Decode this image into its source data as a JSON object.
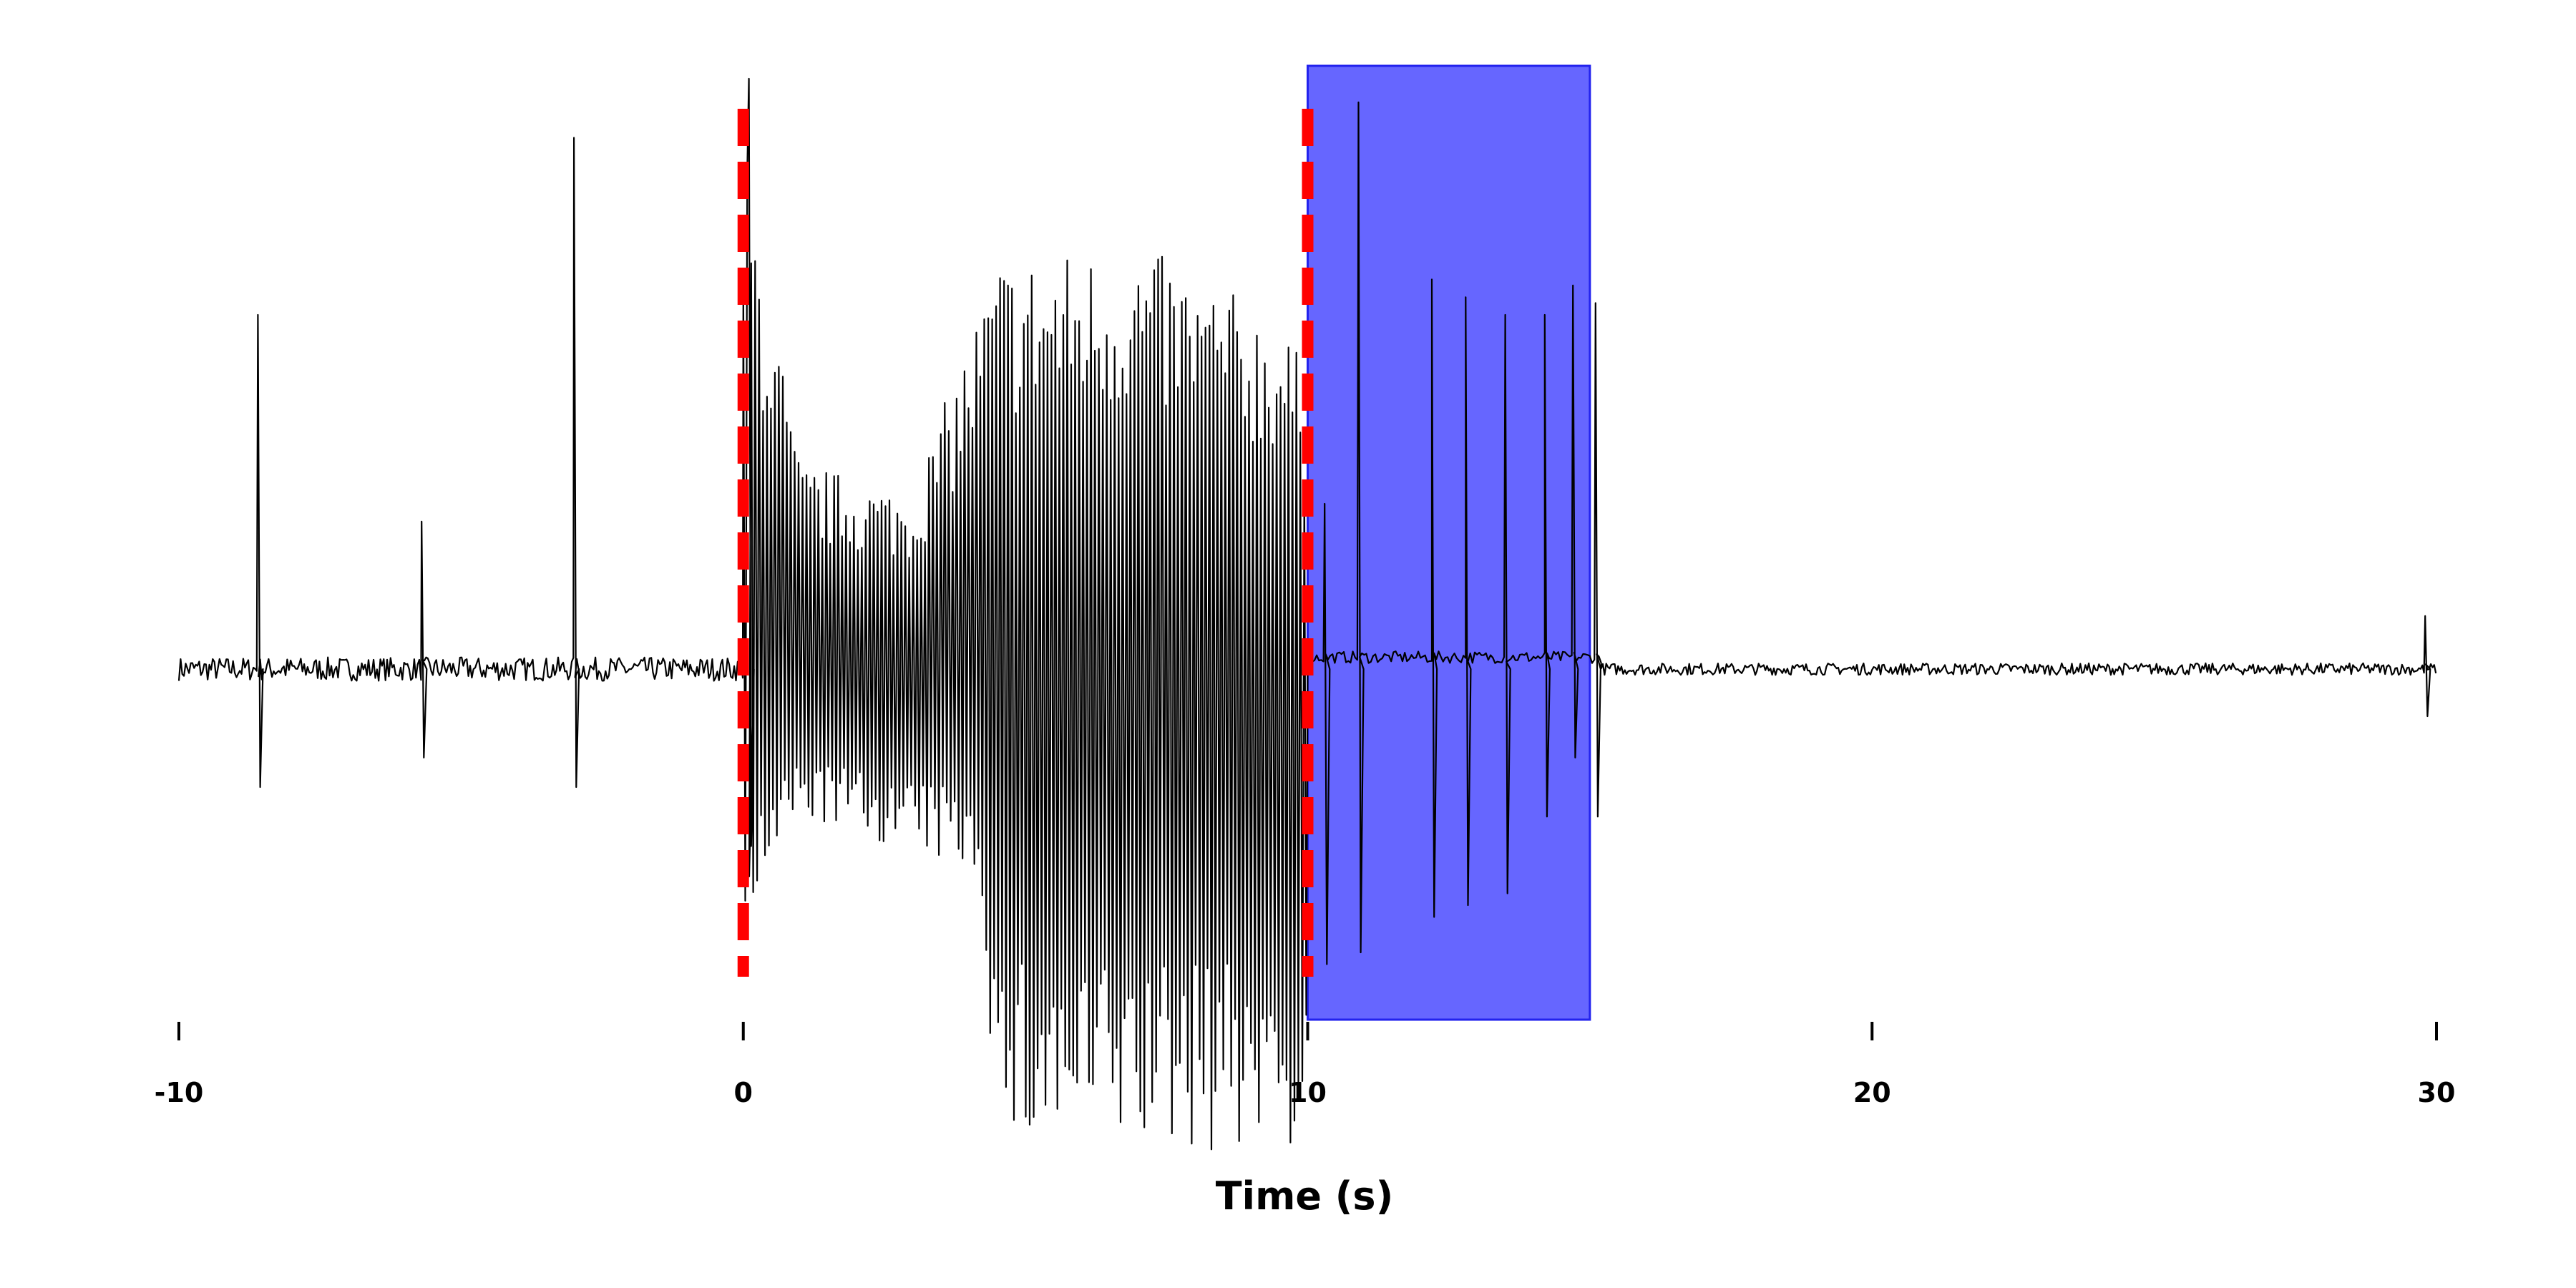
{
  "chart_data": {
    "type": "line",
    "title": "",
    "xlabel": "Time (s)",
    "ylabel": "",
    "xlim": [
      -10,
      30
    ],
    "xticks": [
      -10,
      0,
      10,
      20,
      30
    ],
    "xtick_labels": [
      "-10",
      "0",
      "10",
      "20",
      "30"
    ],
    "y_axis_shown": false,
    "grid": false,
    "legend": null,
    "series": [
      {
        "color": "#000000",
        "segments": [
          {
            "t_start": -10.0,
            "t_end": 0.0,
            "pattern": "baseline",
            "noise": 0.02
          },
          {
            "t_start": 0.0,
            "t_end": 10.0,
            "pattern": "dense oscillation",
            "upper_envelope": [
              [
                0.0,
                0.9
              ],
              [
                1.0,
                0.35
              ],
              [
                3.0,
                0.3
              ],
              [
                4.5,
                0.7
              ],
              [
                7.0,
                0.72
              ],
              [
                9.5,
                0.6
              ],
              [
                10.0,
                0.5
              ]
            ],
            "lower_envelope": [
              [
                0.0,
                -0.45
              ],
              [
                1.0,
                -0.25
              ],
              [
                4.2,
                -0.35
              ],
              [
                4.5,
                -0.82
              ],
              [
                9.0,
                -0.82
              ],
              [
                10.0,
                -0.82
              ]
            ]
          },
          {
            "t_start": 10.0,
            "t_end": 15.2,
            "pattern": "sparse spikes",
            "level": 0.02
          },
          {
            "t_start": 15.2,
            "t_end": 30.0,
            "pattern": "baseline",
            "noise": 0.01
          }
        ],
        "spikes": [
          {
            "t": -8.6,
            "min": -0.2,
            "max": 0.6
          },
          {
            "t": -5.7,
            "min": -0.15,
            "max": 0.25
          },
          {
            "t": -3.0,
            "min": -0.2,
            "max": 0.9
          },
          {
            "t": 0.1,
            "min": -0.3,
            "max": 1.0
          },
          {
            "t": 10.3,
            "min": -0.5,
            "max": 0.28
          },
          {
            "t": 10.9,
            "min": -0.48,
            "max": 0.96
          },
          {
            "t": 12.2,
            "min": -0.42,
            "max": 0.66
          },
          {
            "t": 12.8,
            "min": -0.4,
            "max": 0.63
          },
          {
            "t": 13.5,
            "min": -0.38,
            "max": 0.6
          },
          {
            "t": 14.2,
            "min": -0.25,
            "max": 0.6
          },
          {
            "t": 14.7,
            "min": -0.15,
            "max": 0.65
          },
          {
            "t": 15.1,
            "min": -0.25,
            "max": 0.62
          },
          {
            "t": 29.8,
            "min": -0.08,
            "max": 0.09
          }
        ]
      }
    ],
    "vlines": [
      {
        "x": 0,
        "color": "#ff0000",
        "style": "dashed"
      },
      {
        "x": 10,
        "color": "#ff0000",
        "style": "dashed"
      }
    ],
    "shaded_region": {
      "x_start": 10,
      "x_end": 15,
      "color": "#6666ff"
    }
  }
}
